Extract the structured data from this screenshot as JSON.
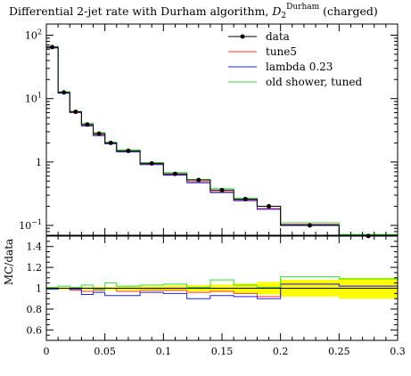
{
  "chart_data": {
    "type": "line",
    "title": "Differential 2-jet rate with Durham algorithm, D₂^Durham (charged)",
    "title_main": "Differential 2-jet rate with Durham algorithm, ",
    "title_var": "D",
    "title_sub": "2",
    "title_sup": "Durham",
    "title_tail": " (charged)",
    "main_panel": {
      "yscale": "log",
      "ylim": [
        0.07,
        150
      ],
      "ytick_values": [
        100,
        10,
        1,
        0.1
      ],
      "ytick_labels": [
        {
          "base": "10",
          "exp": "2"
        },
        {
          "base": "10",
          "exp": "1"
        },
        {
          "base": "1",
          "exp": ""
        },
        {
          "base": "10",
          "exp": "−1"
        }
      ]
    },
    "ratio_panel": {
      "ylabel": "MC/data",
      "ylim": [
        0.5,
        1.5
      ],
      "yticks": [
        "0.6",
        "0.8",
        "1",
        "1.2",
        "1.4"
      ]
    },
    "xlim": [
      0,
      0.3
    ],
    "xticks": [
      "0",
      "0.05",
      "0.1",
      "0.15",
      "0.2",
      "0.25",
      "0.3"
    ],
    "bin_edges": [
      0,
      0.01,
      0.02,
      0.03,
      0.04,
      0.05,
      0.06,
      0.08,
      0.1,
      0.12,
      0.14,
      0.16,
      0.18,
      0.2,
      0.25,
      0.3
    ],
    "legend_position": "top-right",
    "data": {
      "name": "data",
      "color": "#000000",
      "values": [
        65,
        12.5,
        6.2,
        3.9,
        2.8,
        2.0,
        1.5,
        0.95,
        0.65,
        0.52,
        0.36,
        0.26,
        0.2,
        0.1,
        0.068
      ]
    },
    "series": [
      {
        "name": "tune5",
        "color": "#ff3333",
        "values": [
          63,
          12.3,
          6.0,
          3.8,
          2.7,
          1.95,
          1.45,
          0.92,
          0.63,
          0.49,
          0.34,
          0.25,
          0.185,
          0.104,
          0.069
        ],
        "ratio": [
          1.0,
          1.0,
          0.98,
          0.97,
          0.98,
          1.0,
          0.97,
          0.98,
          0.98,
          0.96,
          0.97,
          0.95,
          0.92,
          1.04,
          1.02
        ]
      },
      {
        "name": "lambda 0.23",
        "color": "#2222dd",
        "values": [
          63,
          12.2,
          6.1,
          3.7,
          2.6,
          1.95,
          1.45,
          0.91,
          0.62,
          0.47,
          0.33,
          0.245,
          0.18,
          0.102,
          0.069
        ],
        "ratio": [
          0.99,
          1.0,
          0.99,
          0.94,
          0.96,
          0.93,
          0.93,
          0.96,
          0.95,
          0.9,
          0.93,
          0.92,
          0.9,
          1.04,
          1.02
        ]
      },
      {
        "name": "old shower, tuned",
        "color": "#33dd33",
        "values": [
          66,
          12.8,
          6.3,
          4.1,
          2.9,
          2.05,
          1.55,
          0.98,
          0.68,
          0.53,
          0.38,
          0.27,
          0.2,
          0.11,
          0.072
        ],
        "ratio": [
          1.01,
          1.02,
          1.01,
          1.03,
          0.99,
          1.05,
          1.02,
          1.03,
          1.04,
          1.01,
          1.08,
          1.03,
          1.01,
          1.11,
          1.09
        ]
      }
    ],
    "uncertainty_band": {
      "color": "#ffff00",
      "halfwidth": [
        0.01,
        0.01,
        0.012,
        0.012,
        0.015,
        0.015,
        0.018,
        0.02,
        0.025,
        0.03,
        0.035,
        0.045,
        0.06,
        0.08,
        0.1
      ]
    }
  }
}
